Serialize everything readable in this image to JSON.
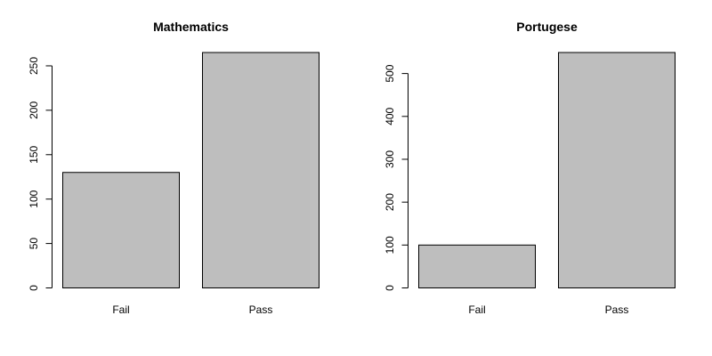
{
  "chart_data": [
    {
      "type": "bar",
      "title": "Mathematics",
      "xlabel": "",
      "ylabel": "",
      "categories": [
        "Fail",
        "Pass"
      ],
      "values": [
        130,
        265
      ],
      "yticks": [
        0,
        50,
        100,
        150,
        200,
        250
      ],
      "ylim": [
        0,
        265
      ],
      "bar_color": "#bebebe",
      "grid": false,
      "legend": "none"
    },
    {
      "type": "bar",
      "title": "Portugese",
      "xlabel": "",
      "ylabel": "",
      "categories": [
        "Fail",
        "Pass"
      ],
      "values": [
        100,
        549
      ],
      "yticks": [
        0,
        100,
        200,
        300,
        400,
        500
      ],
      "ylim": [
        0,
        549
      ],
      "bar_color": "#bebebe",
      "grid": false,
      "legend": "none"
    }
  ]
}
